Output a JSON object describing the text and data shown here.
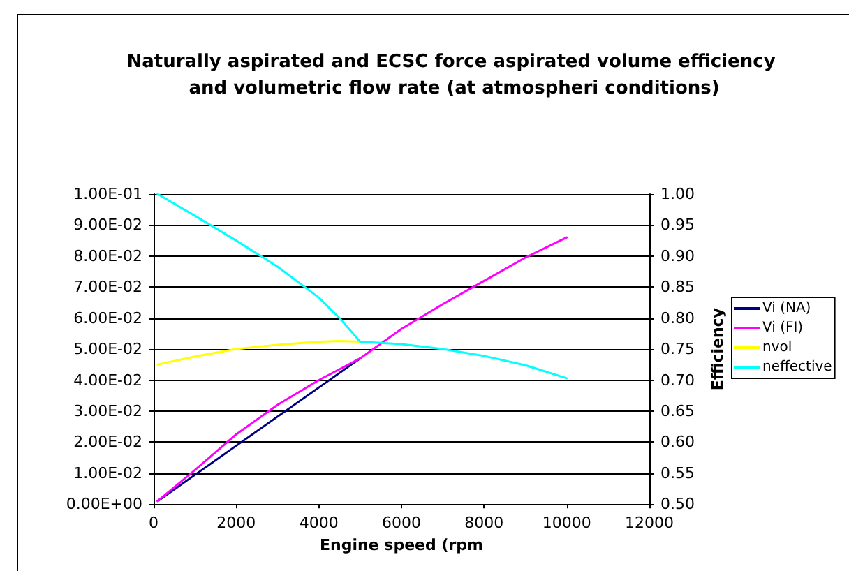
{
  "chart_data": {
    "type": "line",
    "title": "Naturally aspirated and ECSC force aspirated volume efficiency and volumetric flow rate (at atmospheri conditions)",
    "xlabel": "Engine speed (rpm",
    "y2label": "Efficiency",
    "x": [
      100,
      1000,
      2000,
      3000,
      4000,
      4500,
      5000,
      6000,
      7000,
      8000,
      9000,
      10000
    ],
    "series": [
      {
        "name": "Vi (NA)",
        "color": "#000080",
        "x": [
          100,
          5000
        ],
        "values": [
          0.001,
          0.047
        ]
      },
      {
        "name": "Vi (FI)",
        "color": "#ff00ff",
        "values": [
          0.001,
          0.011,
          0.0225,
          0.032,
          0.04,
          0.0435,
          0.047,
          0.0565,
          0.0645,
          0.072,
          0.0795,
          0.086
        ]
      },
      {
        "name": "nvol",
        "color": "#ffff00",
        "axis": "y2",
        "values": [
          0.725,
          0.738,
          0.75,
          0.757,
          0.762,
          0.763,
          0.762,
          null,
          null,
          null,
          null,
          null
        ]
      },
      {
        "name": "neffective",
        "color": "#00ffff",
        "axis": "y2",
        "values": [
          1.0,
          0.965,
          0.925,
          0.883,
          0.833,
          0.8,
          0.762,
          0.758,
          0.75,
          0.739,
          0.724,
          0.703
        ]
      }
    ],
    "xlim": [
      0,
      12000
    ],
    "xticks": [
      0,
      2000,
      4000,
      6000,
      8000,
      10000,
      12000
    ],
    "ylim": [
      0,
      0.1
    ],
    "yticks": [
      {
        "value": 0,
        "label": "0.00E+00"
      },
      {
        "value": 0.01,
        "label": "1.00E-02"
      },
      {
        "value": 0.02,
        "label": "2.00E-02"
      },
      {
        "value": 0.03,
        "label": "3.00E-02"
      },
      {
        "value": 0.04,
        "label": "4.00E-02"
      },
      {
        "value": 0.05,
        "label": "5.00E-02"
      },
      {
        "value": 0.06,
        "label": "6.00E-02"
      },
      {
        "value": 0.07,
        "label": "7.00E-02"
      },
      {
        "value": 0.08,
        "label": "8.00E-02"
      },
      {
        "value": 0.09,
        "label": "9.00E-02"
      },
      {
        "value": 0.1,
        "label": "1.00E-01"
      }
    ],
    "y2lim": [
      0.5,
      1.0
    ],
    "y2ticks": [
      {
        "value": 0.5,
        "label": "0.50"
      },
      {
        "value": 0.55,
        "label": "0.55"
      },
      {
        "value": 0.6,
        "label": "0.60"
      },
      {
        "value": 0.65,
        "label": "0.65"
      },
      {
        "value": 0.7,
        "label": "0.70"
      },
      {
        "value": 0.75,
        "label": "0.75"
      },
      {
        "value": 0.8,
        "label": "0.80"
      },
      {
        "value": 0.85,
        "label": "0.85"
      },
      {
        "value": 0.9,
        "label": "0.90"
      },
      {
        "value": 0.95,
        "label": "0.95"
      },
      {
        "value": 1.0,
        "label": "1.00"
      }
    ],
    "grid": "y",
    "legend": "right",
    "marker": "none",
    "line_style": "solid"
  }
}
